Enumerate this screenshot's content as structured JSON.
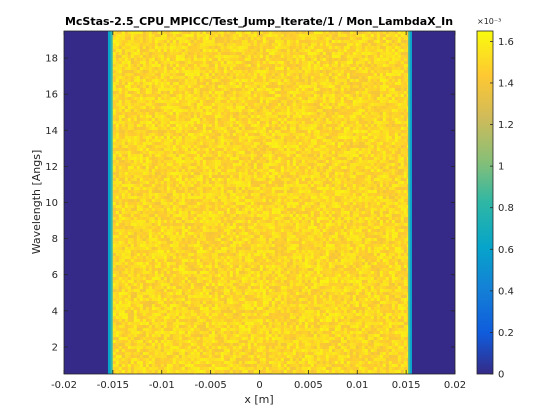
{
  "chart_data": {
    "type": "heatmap",
    "title": "McStas-2.5_CPU_MPICC/Test_Jump_Iterate/1 / Mon_LambdaX_In",
    "xlabel": "x [m]",
    "ylabel": "Wavelength [Angs]",
    "xlim": [
      -0.02,
      0.02
    ],
    "ylim": [
      0.5,
      19.5
    ],
    "x_ticks": [
      -0.02,
      -0.015,
      -0.01,
      -0.005,
      0,
      0.005,
      0.01,
      0.015,
      0.02
    ],
    "x_tick_labels": [
      "-0.02",
      "-0.015",
      "-0.01",
      "-0.005",
      "0",
      "0.005",
      "0.01",
      "0.015",
      "0.02"
    ],
    "y_ticks": [
      2,
      4,
      6,
      8,
      10,
      12,
      14,
      16,
      18
    ],
    "y_tick_labels": [
      "2",
      "4",
      "6",
      "8",
      "10",
      "12",
      "14",
      "16",
      "18"
    ],
    "colorbar": {
      "min": 0,
      "max": 1.65,
      "multiplier_label": "×10⁻³",
      "ticks": [
        0,
        0.2,
        0.4,
        0.6,
        0.8,
        1,
        1.2,
        1.4,
        1.6
      ],
      "tick_labels": [
        "0",
        "0.2",
        "0.4",
        "0.6",
        "0.8",
        "1",
        "1.2",
        "1.4",
        "1.6"
      ],
      "colormap": "parula"
    },
    "regions": [
      {
        "x_from": -0.02,
        "x_to": -0.0155,
        "value": 0
      },
      {
        "x_from": -0.0155,
        "x_to": -0.0152,
        "value": 0.62
      },
      {
        "x_from": -0.0152,
        "x_to": -0.015,
        "value": 0.85
      },
      {
        "x_from": -0.015,
        "x_to": 0.0152,
        "value": 1.5,
        "noise": 0.12
      },
      {
        "x_from": 0.0152,
        "x_to": 0.0154,
        "value": 0.85
      },
      {
        "x_from": 0.0154,
        "x_to": 0.0156,
        "value": 0.62
      },
      {
        "x_from": 0.0156,
        "x_to": 0.02,
        "value": 0
      }
    ],
    "grid": false
  }
}
